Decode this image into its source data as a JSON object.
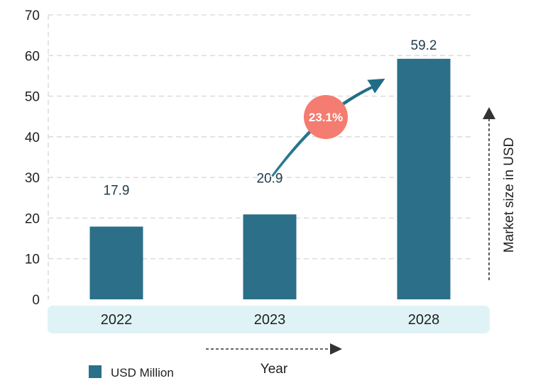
{
  "chart_data": {
    "type": "bar",
    "categories": [
      "2022",
      "2023",
      "2028"
    ],
    "series": [
      {
        "name": "USD Million",
        "values": [
          17.9,
          20.9,
          59.2
        ]
      }
    ],
    "value_labels": [
      "17.9",
      "20.9",
      "59.2"
    ],
    "xlabel": "Year",
    "ylabel": "Market size in USD",
    "ylim": [
      0,
      70
    ],
    "yticks": [
      "0",
      "10",
      "20",
      "30",
      "40",
      "50",
      "60",
      "70"
    ],
    "grid": true,
    "legend": {
      "position": "bottom-left",
      "label": "USD Million"
    },
    "annotation": {
      "text": "23.1%",
      "meaning": "CAGR growth arrow from 2023 to 2028"
    },
    "colors": {
      "bar": "#2b6f89",
      "band": "#dff3f6",
      "badge": "#f47c70",
      "arrow": "#2b7a93",
      "grid": "#dddddd"
    }
  }
}
